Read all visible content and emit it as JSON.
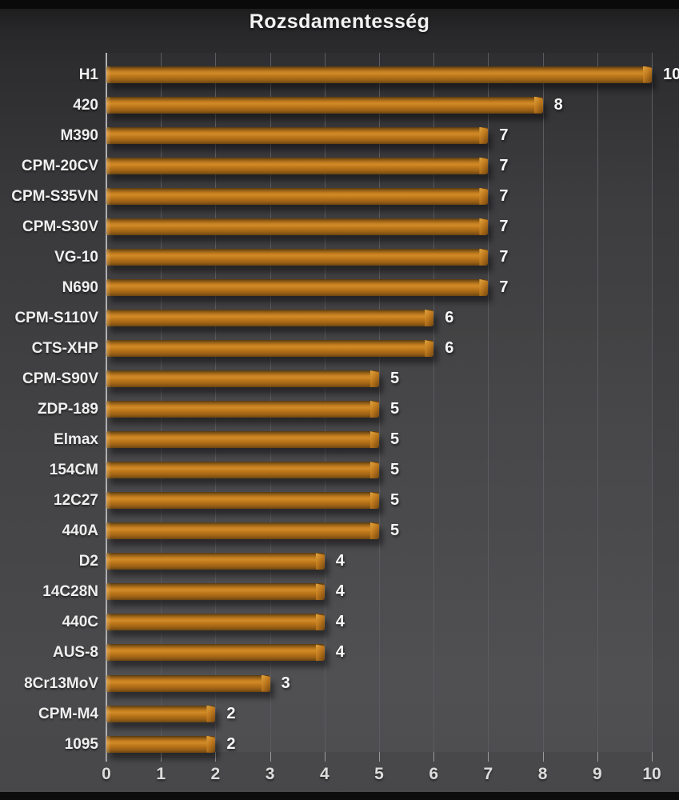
{
  "chart_data": {
    "type": "bar",
    "orientation": "horizontal",
    "title": "Rozsdamentesség",
    "categories": [
      "H1",
      "420",
      "M390",
      "CPM-20CV",
      "CPM-S35VN",
      "CPM-S30V",
      "VG-10",
      "N690",
      "CPM-S110V",
      "CTS-XHP",
      "CPM-S90V",
      "ZDP-189",
      "Elmax",
      "154CM",
      "12C27",
      "440A",
      "D2",
      "14C28N",
      "440C",
      "AUS-8",
      "8Cr13MoV",
      "CPM-M4",
      "1095"
    ],
    "values": [
      10,
      8,
      7,
      7,
      7,
      7,
      7,
      7,
      6,
      6,
      5,
      5,
      5,
      5,
      5,
      5,
      4,
      4,
      4,
      4,
      3,
      2,
      2
    ],
    "xlabel": "",
    "ylabel": "",
    "xlim": [
      0,
      10
    ],
    "x_ticks": [
      0,
      1,
      2,
      3,
      4,
      5,
      6,
      7,
      8,
      9,
      10
    ],
    "grid": true,
    "legend": "none",
    "data_labels": "outside-end",
    "colors": {
      "bar": "#c67f1f",
      "bar_highlight": "#d18a28",
      "bar_shadow_edge": "#6b4511",
      "background_top": "#28282a",
      "background_bottom": "#4a4a4c",
      "top_bottom_strips": "#0a0a0a",
      "gridline": "#5c5c60",
      "axis_line": "#b2b2b4",
      "title_text": "#f2f2f2",
      "category_text": "#efefef",
      "value_text": "#f7f7f7",
      "tick_text": "#dcdcdc"
    }
  }
}
